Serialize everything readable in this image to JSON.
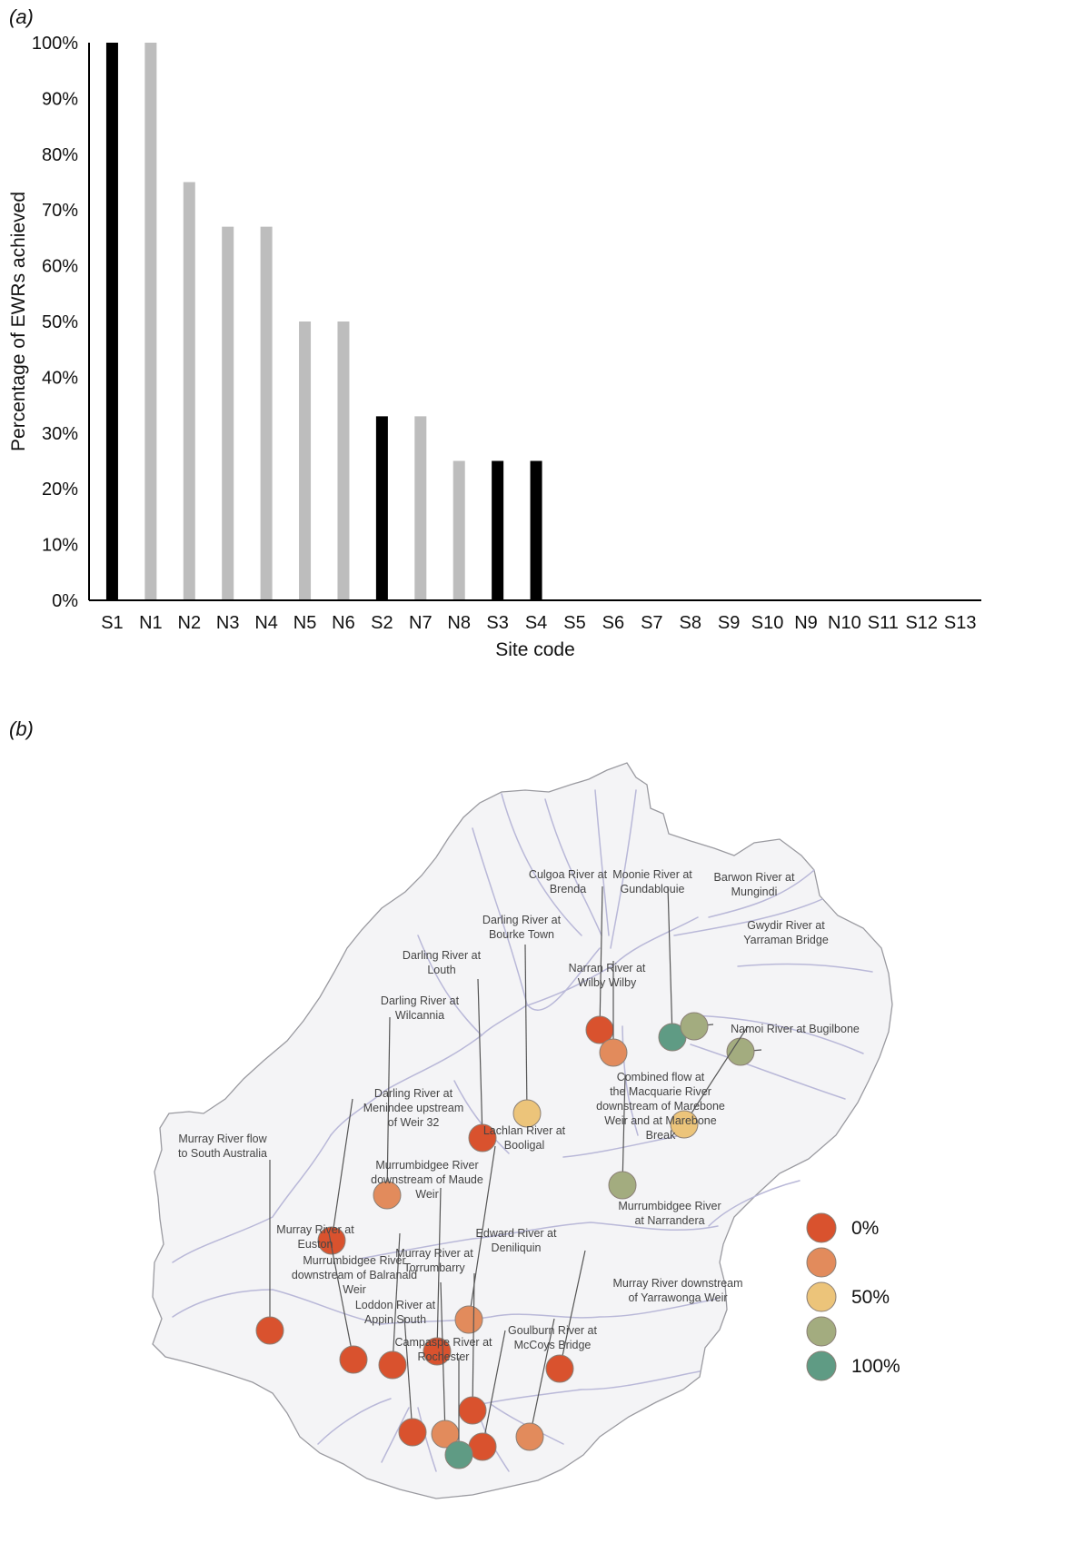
{
  "panel_a_label": "(a)",
  "panel_b_label": "(b)",
  "chart_data": [
    {
      "type": "bar",
      "title": "",
      "xlabel": "Site code",
      "ylabel": "Percentage of EWRs achieved",
      "ylim": [
        0,
        100
      ],
      "yticks": [
        "0%",
        "10%",
        "20%",
        "30%",
        "40%",
        "50%",
        "60%",
        "70%",
        "80%",
        "90%",
        "100%"
      ],
      "categories": [
        "S1",
        "N1",
        "N2",
        "N3",
        "N4",
        "N5",
        "N6",
        "S2",
        "N7",
        "N8",
        "S3",
        "S4",
        "S5",
        "S6",
        "S7",
        "S8",
        "S9",
        "S10",
        "N9",
        "N10",
        "S11",
        "S12",
        "S13"
      ],
      "values": [
        100,
        100,
        75,
        67,
        67,
        50,
        50,
        33,
        33,
        25,
        25,
        25,
        0,
        0,
        0,
        0,
        0,
        0,
        0,
        0,
        0,
        0,
        0
      ],
      "group": [
        "S",
        "N",
        "N",
        "N",
        "N",
        "N",
        "N",
        "S",
        "N",
        "N",
        "S",
        "S",
        "S",
        "S",
        "S",
        "S",
        "S",
        "S",
        "N",
        "N",
        "S",
        "S",
        "S"
      ],
      "colors": {
        "S": "#000000",
        "N": "#bdbdbd"
      }
    },
    {
      "type": "map",
      "legend": {
        "entries": [
          {
            "label": "0%",
            "color": "#d9522e"
          },
          {
            "label": "",
            "color": "#e28b5c"
          },
          {
            "label": "50%",
            "color": "#ecc47a"
          },
          {
            "label": "",
            "color": "#a3ac7f"
          },
          {
            "label": "100%",
            "color": "#5f9b84"
          }
        ]
      },
      "sites": [
        {
          "name": "Culgoa River at Brenda",
          "lines": [
            "Culgoa River at",
            "Brenda"
          ],
          "category": 0
        },
        {
          "name": "Moonie River at Gundablouie",
          "lines": [
            "Moonie River at",
            "Gundablouie"
          ],
          "category": 4
        },
        {
          "name": "Barwon River at Mungindi",
          "lines": [
            "Barwon River at",
            "Mungindi"
          ],
          "category": 3
        },
        {
          "name": "Gwydir River at Yarraman Bridge",
          "lines": [
            "Gwydir River at",
            "Yarraman Bridge"
          ],
          "category": 3
        },
        {
          "name": "Darling River at Bourke Town",
          "lines": [
            "Darling River at",
            "Bourke Town"
          ],
          "category": 2
        },
        {
          "name": "Narran River at Wilby Wilby",
          "lines": [
            "Narran River at",
            "Wilby Wilby"
          ],
          "category": 1
        },
        {
          "name": "Darling River at Louth",
          "lines": [
            "Darling River at",
            "Louth"
          ],
          "category": 0
        },
        {
          "name": "Namoi River at Bugilbone",
          "lines": [
            "Namoi River at Bugilbone"
          ],
          "category": 2
        },
        {
          "name": "Darling River at Wilcannia",
          "lines": [
            "Darling River at",
            "Wilcannia"
          ],
          "category": 1
        },
        {
          "name": "Combined flow at the Macquarie River downstream of Marebone Weir and at Marebone Break",
          "lines": [
            "Combined flow at",
            "the Macquarie River",
            "downstream of Marebone",
            "Weir and at Marebone",
            "Break"
          ],
          "category": 3
        },
        {
          "name": "Darling River at Menindee upstream of Weir 32",
          "lines": [
            "Darling River at",
            "Menindee upstream",
            "of Weir 32"
          ],
          "category": 0
        },
        {
          "name": "Lachlan River at Booligal",
          "lines": [
            "Lachlan River at",
            "Booligal"
          ],
          "category": 1
        },
        {
          "name": "Murray River flow to South Australia",
          "lines": [
            "Murray River flow",
            "to South Australia"
          ],
          "category": 0
        },
        {
          "name": "Murrumbidgee River downstream of Maude Weir",
          "lines": [
            "Murrumbidgee River",
            "downstream of Maude",
            "Weir"
          ],
          "category": 0
        },
        {
          "name": "Murray River at Euston",
          "lines": [
            "Murray River at",
            "Euston"
          ],
          "category": 0
        },
        {
          "name": "Murrumbidgee River downstream of Balranald Weir",
          "lines": [
            "Murrumbidgee River",
            "downstream of Balranald",
            "Weir"
          ],
          "category": 0
        },
        {
          "name": "Murrumbidgee River at Narrandera",
          "lines": [
            "Murrumbidgee River",
            "at Narrandera"
          ],
          "category": 0
        },
        {
          "name": "Edward River at Deniliquin",
          "lines": [
            "Edward River at",
            "Deniliquin"
          ],
          "category": 0
        },
        {
          "name": "Murray River at Torrumbarry",
          "lines": [
            "Murray River at",
            "Torrumbarry"
          ],
          "category": 1
        },
        {
          "name": "Murray River downstream of Yarrawonga Weir",
          "lines": [
            "Murray River downstream",
            "of Yarrawonga Weir"
          ],
          "category": 1
        },
        {
          "name": "Loddon River at Appin South",
          "lines": [
            "Loddon River at",
            "Appin South"
          ],
          "category": 0
        },
        {
          "name": "Goulburn River at McCoys Bridge",
          "lines": [
            "Goulburn River at",
            "McCoys Bridge"
          ],
          "category": 0
        },
        {
          "name": "Campaspe River at Rochester",
          "lines": [
            "Campaspe River at",
            "Rochester"
          ],
          "category": 4
        }
      ]
    }
  ]
}
